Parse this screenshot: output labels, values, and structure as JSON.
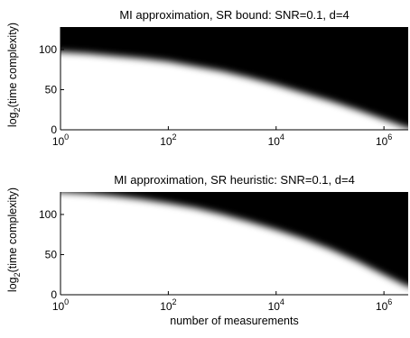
{
  "chart_data": [
    {
      "type": "heatmap",
      "title": "MI approximation, SR bound: SNR=0.1, d=4",
      "xlabel": "",
      "ylabel_main": "log",
      "ylabel_sub": "2",
      "ylabel_rest": "(time complexity)",
      "x_scale": "log10",
      "xlim_log10": [
        0,
        6.45
      ],
      "ylim": [
        0,
        128
      ],
      "x_tick_base": "10",
      "x_tick_exponents": [
        "0",
        "2",
        "4",
        "6"
      ],
      "y_ticks": [
        "0",
        "50",
        "100"
      ],
      "colors": {
        "low": "#ffffff",
        "high": "#000000"
      },
      "grid": false,
      "boundary": {
        "log10_n": [
          0,
          0.5,
          1,
          1.5,
          2,
          2.5,
          3,
          3.5,
          4,
          4.5,
          5,
          5.5,
          6,
          6.45
        ],
        "log2_complexity": [
          97,
          95,
          92,
          89,
          85,
          79,
          73,
          65,
          56,
          46,
          36,
          25,
          13,
          2
        ]
      }
    },
    {
      "type": "heatmap",
      "title": "MI approximation, SR heuristic: SNR=0.1, d=4",
      "xlabel": "number of measurements",
      "ylabel_main": "log",
      "ylabel_sub": "2",
      "ylabel_rest": "(time complexity)",
      "x_scale": "log10",
      "xlim_log10": [
        0,
        6.45
      ],
      "ylim": [
        0,
        128
      ],
      "x_tick_base": "10",
      "x_tick_exponents": [
        "0",
        "2",
        "4",
        "6"
      ],
      "y_ticks": [
        "0",
        "50",
        "100"
      ],
      "colors": {
        "low": "#ffffff",
        "high": "#000000"
      },
      "grid": false,
      "boundary": {
        "log10_n": [
          0,
          0.5,
          1,
          1.5,
          2,
          2.5,
          3,
          3.5,
          4,
          4.5,
          5,
          5.5,
          6,
          6.45
        ],
        "log2_complexity": [
          128,
          126,
          123,
          119,
          114,
          108,
          100,
          91,
          81,
          70,
          57,
          42,
          25,
          10
        ]
      }
    }
  ]
}
